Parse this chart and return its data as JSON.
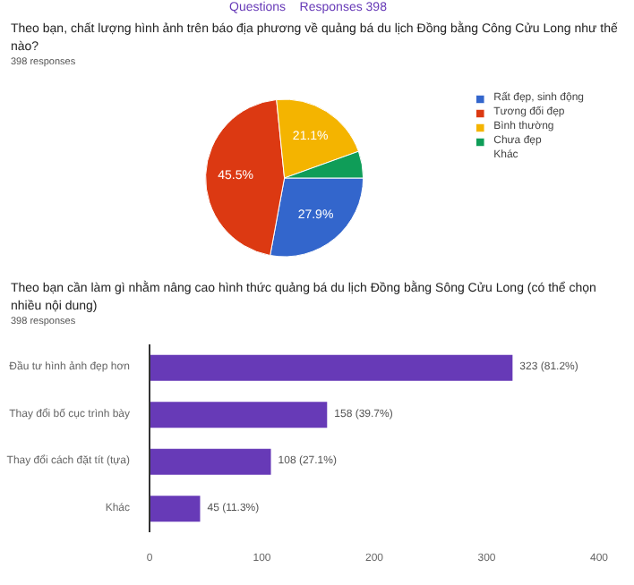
{
  "chart_data": [
    {
      "type": "pie",
      "title": "Theo bạn, chất lượng hình ảnh trên báo địa phương về quảng bá du lịch Đồng bằng Công Cửu Long như thế nào?",
      "subtitle": "398 responses",
      "annotations": [
        "Questions",
        "Responses 398"
      ],
      "categories": [
        "Rất đẹp, sinh động",
        "Tương đối đẹp",
        "Bình thường",
        "Chưa đẹp",
        "Khác"
      ],
      "values": [
        27.9,
        45.5,
        21.1,
        5.5,
        0
      ],
      "colors": [
        "#3366cc",
        "#dc3912",
        "#f4b400",
        "#0f9d58",
        "#990099"
      ],
      "value_labels": [
        "27.9%",
        "45.5%",
        "21.1%",
        null,
        null
      ],
      "legend": "right"
    },
    {
      "type": "bar",
      "orientation": "horizontal",
      "title": "Theo bạn cần làm gì nhằm nâng cao hình thức quảng bá du lịch Đồng bằng Sông Cửu Long (có thể chọn nhiều nội dung)",
      "subtitle": "398 responses",
      "categories": [
        "Đầu tư hình ảnh đẹp hơn",
        "Thay đổi bố cục trình bày",
        "Thay đổi cách đặt tít (tựa)",
        "Khác"
      ],
      "values": [
        323,
        158,
        108,
        45
      ],
      "color": "#673ab7",
      "value_labels": [
        "323 (81.2%)",
        "158 (39.7%)",
        "108 (27.1%)",
        "45 (11.3%)"
      ],
      "xlim": [
        0,
        400
      ],
      "xticks": [
        0,
        100,
        200,
        300,
        400
      ],
      "grid": false
    }
  ]
}
